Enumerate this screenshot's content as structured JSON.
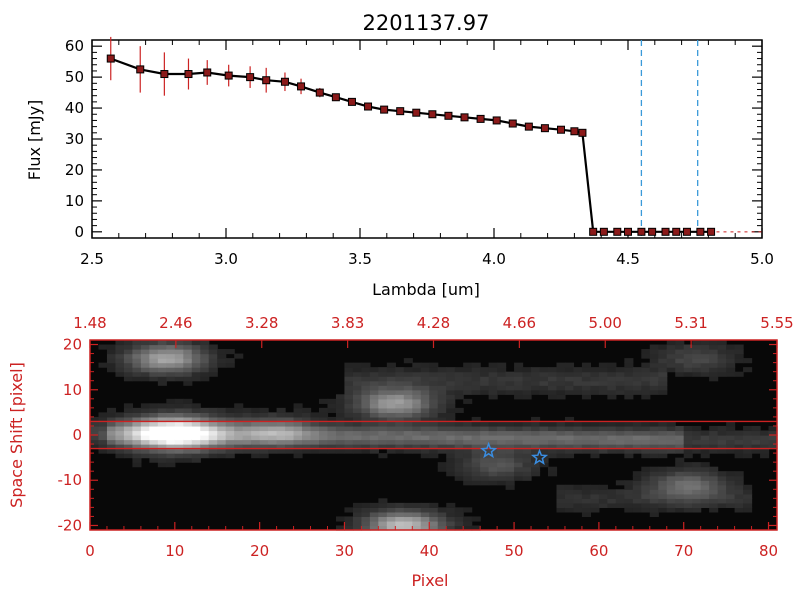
{
  "chart_data": [
    {
      "type": "line",
      "title": "2201137.97",
      "xlabel": "Lambda [um]",
      "ylabel": "Flux [mJy]",
      "xlim": [
        2.5,
        5.0
      ],
      "ylim": [
        -2,
        62
      ],
      "xticks": [
        "2.5",
        "3.0",
        "3.5",
        "4.0",
        "4.5",
        "5.0"
      ],
      "yticks": [
        "0",
        "10",
        "20",
        "30",
        "40",
        "50",
        "60"
      ],
      "vlines": [
        4.55,
        4.76
      ],
      "series": [
        {
          "points": [
            {
              "x": 2.57,
              "y": 56.0,
              "err": 7.0
            },
            {
              "x": 2.68,
              "y": 52.5,
              "err": 7.5
            },
            {
              "x": 2.77,
              "y": 51.0,
              "err": 7.0
            },
            {
              "x": 2.86,
              "y": 51.0,
              "err": 5.0
            },
            {
              "x": 2.93,
              "y": 51.5,
              "err": 4.0
            },
            {
              "x": 3.01,
              "y": 50.5,
              "err": 3.5
            },
            {
              "x": 3.09,
              "y": 50.0,
              "err": 3.5
            },
            {
              "x": 3.15,
              "y": 49.0,
              "err": 4.0
            },
            {
              "x": 3.22,
              "y": 48.5,
              "err": 3.0
            },
            {
              "x": 3.28,
              "y": 47.0,
              "err": 2.5
            },
            {
              "x": 3.35,
              "y": 45.0,
              "err": 1.5
            },
            {
              "x": 3.41,
              "y": 43.5,
              "err": 1.0
            },
            {
              "x": 3.47,
              "y": 42.0,
              "err": 0.8
            },
            {
              "x": 3.53,
              "y": 40.5,
              "err": 0.6
            },
            {
              "x": 3.59,
              "y": 39.5,
              "err": 0.5
            },
            {
              "x": 3.65,
              "y": 39.0,
              "err": 0.5
            },
            {
              "x": 3.71,
              "y": 38.5,
              "err": 0.5
            },
            {
              "x": 3.77,
              "y": 38.0,
              "err": 0.5
            },
            {
              "x": 3.83,
              "y": 37.5,
              "err": 0.5
            },
            {
              "x": 3.89,
              "y": 37.0,
              "err": 0.5
            },
            {
              "x": 3.95,
              "y": 36.5,
              "err": 0.5
            },
            {
              "x": 4.01,
              "y": 36.0,
              "err": 0.5
            },
            {
              "x": 4.07,
              "y": 35.0,
              "err": 0.5
            },
            {
              "x": 4.13,
              "y": 34.0,
              "err": 0.5
            },
            {
              "x": 4.19,
              "y": 33.5,
              "err": 0.5
            },
            {
              "x": 4.25,
              "y": 33.0,
              "err": 0.5
            },
            {
              "x": 4.3,
              "y": 32.5,
              "err": 0.5
            },
            {
              "x": 4.33,
              "y": 32.0,
              "err": 0.5
            },
            {
              "x": 4.37,
              "y": 0.0,
              "err": 0.3
            },
            {
              "x": 4.41,
              "y": 0.0,
              "err": 0.3
            },
            {
              "x": 4.46,
              "y": 0.0,
              "err": 0.3
            },
            {
              "x": 4.5,
              "y": 0.0,
              "err": 0.3
            },
            {
              "x": 4.55,
              "y": 0.0,
              "err": 0.3
            },
            {
              "x": 4.59,
              "y": 0.0,
              "err": 0.3
            },
            {
              "x": 4.64,
              "y": 0.0,
              "err": 0.3
            },
            {
              "x": 4.68,
              "y": 0.0,
              "err": 0.3
            },
            {
              "x": 4.72,
              "y": 0.0,
              "err": 0.3
            },
            {
              "x": 4.77,
              "y": 0.0,
              "err": 0.3
            },
            {
              "x": 4.81,
              "y": 0.0,
              "err": 0.3
            }
          ]
        }
      ],
      "colors": {
        "line": "#000000",
        "marker": "#8b1a1a",
        "errorbar": "#cc2222",
        "vline": "#3a9ad9",
        "axis": "#000000"
      }
    },
    {
      "type": "heatmap",
      "xlabel": "Pixel",
      "ylabel": "Space Shift [pixel]",
      "xlim": [
        0,
        81
      ],
      "ylim": [
        -21,
        21
      ],
      "xticks": [
        "0",
        "10",
        "20",
        "30",
        "40",
        "50",
        "60",
        "70",
        "80"
      ],
      "yticks": [
        "-20",
        "-10",
        "0",
        "10",
        "20"
      ],
      "top_axis_ticks": [
        "1.48",
        "2.46",
        "3.28",
        "3.83",
        "4.28",
        "4.66",
        "5.00",
        "5.31",
        "5.55"
      ],
      "hlines": [
        3,
        -3
      ],
      "stars": [
        {
          "x": 47,
          "y": -3.5
        },
        {
          "x": 53,
          "y": -5
        }
      ],
      "blobs": [
        {
          "x": 10,
          "y": 0.5,
          "amp": 1.0
        },
        {
          "x": 9,
          "y": 17,
          "amp": 0.6
        },
        {
          "x": 36,
          "y": 7,
          "amp": 0.55
        },
        {
          "x": 37,
          "y": -20,
          "amp": 0.7
        },
        {
          "x": 70.5,
          "y": -11,
          "amp": 0.35
        },
        {
          "x": 71.5,
          "y": 17,
          "amp": 0.2
        },
        {
          "x": 22,
          "y": 1,
          "amp": 0.35
        },
        {
          "x": 48,
          "y": -6.5,
          "amp": 0.25
        }
      ],
      "colors": {
        "frame": "#cc2222",
        "labels": "#cc2222",
        "hline": "#cc2222",
        "star": "#3a8de0"
      }
    }
  ]
}
